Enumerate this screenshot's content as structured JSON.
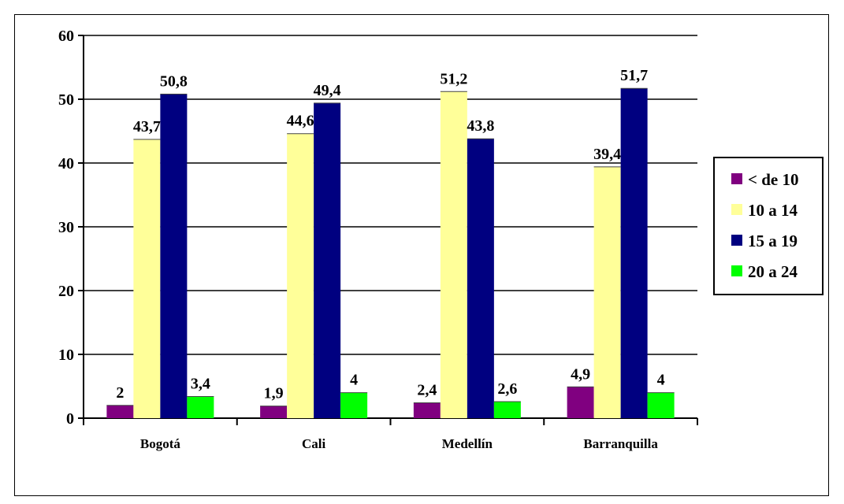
{
  "chart_data": {
    "type": "bar",
    "categories": [
      "Bogotá",
      "Cali",
      "Medellín",
      "Barranquilla"
    ],
    "series": [
      {
        "name": "< de 10",
        "color": "#800080",
        "values": [
          2,
          1.9,
          2.4,
          4.9
        ],
        "labels": [
          "2",
          "1,9",
          "2,4",
          "4,9"
        ]
      },
      {
        "name": "10 a 14",
        "color": "#FFFF99",
        "values": [
          43.7,
          44.6,
          51.2,
          39.4
        ],
        "labels": [
          "43,7",
          "44,6",
          "51,2",
          "39,4"
        ]
      },
      {
        "name": "15 a 19",
        "color": "#000080",
        "values": [
          50.8,
          49.4,
          43.8,
          51.7
        ],
        "labels": [
          "50,8",
          "49,4",
          "43,8",
          "51,7"
        ]
      },
      {
        "name": "20 a 24",
        "color": "#00FF00",
        "values": [
          3.4,
          4,
          2.6,
          4
        ],
        "labels": [
          "3,4",
          "4",
          "2,6",
          "4"
        ]
      }
    ],
    "yticks": [
      "0",
      "10",
      "20",
      "30",
      "40",
      "50",
      "60"
    ],
    "ylim": [
      0,
      60
    ],
    "grid": true,
    "legend_position": "right"
  }
}
